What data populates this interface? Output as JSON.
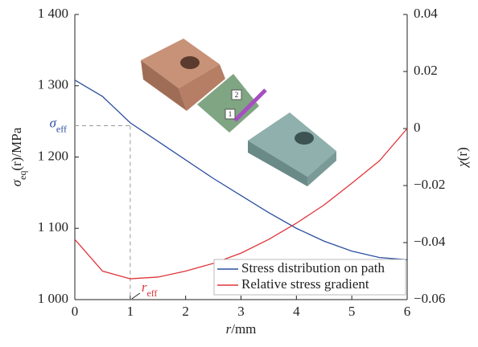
{
  "chart_data": {
    "type": "line",
    "x": [
      0,
      0.5,
      1,
      1.5,
      2,
      2.5,
      3,
      3.5,
      4,
      4.5,
      5,
      5.5,
      6
    ],
    "series": [
      {
        "name": "Stress distribution on path",
        "color": "#2b4fa0",
        "values": [
          1308,
          1285,
          1248,
          1222,
          1196,
          1170,
          1146,
          1122,
          1100,
          1082,
          1068,
          1059,
          1056
        ]
      },
      {
        "name": "Relative stress gradient",
        "color": "#e0343a",
        "axis": "y2",
        "values": [
          -0.0389,
          -0.05,
          -0.0527,
          -0.0521,
          -0.05,
          -0.0473,
          -0.0437,
          -0.0389,
          -0.0332,
          -0.0268,
          -0.0192,
          -0.0113,
          0
        ]
      }
    ],
    "xlim": [
      0,
      6
    ],
    "xticks": [
      0,
      1,
      2,
      3,
      4,
      5,
      6
    ],
    "ylim": [
      1000,
      1400
    ],
    "yticks": [
      {
        "value": 1000,
        "label": "1 000"
      },
      {
        "value": 1100,
        "label": "1 100"
      },
      {
        "value": 1200,
        "label": "1 200"
      },
      {
        "value": 1300,
        "label": "1 300"
      },
      {
        "value": 1400,
        "label": "1 400"
      }
    ],
    "y2lim": [
      -0.06,
      0.04
    ],
    "y2ticks": [
      {
        "value": -0.06,
        "label": "−0.06"
      },
      {
        "value": -0.04,
        "label": "−0.04"
      },
      {
        "value": -0.02,
        "label": "−0.02"
      },
      0,
      0.02,
      0.04
    ],
    "xlabel": {
      "symbol": "r",
      "unit": "/mm"
    },
    "ylabel": {
      "symbol": "σ",
      "sub": "eq",
      "rest": "(r)/MPa"
    },
    "y2label": {
      "symbol": "χ",
      "rest": "(r)"
    },
    "sigma_eff": {
      "symbol": "σ",
      "sub": "eff",
      "value": 1244,
      "x": 1
    },
    "r_eff": {
      "symbol": "r",
      "sub": "eff",
      "value": 1
    },
    "legend": "lower right",
    "image_labels": [
      "1",
      "2"
    ]
  }
}
